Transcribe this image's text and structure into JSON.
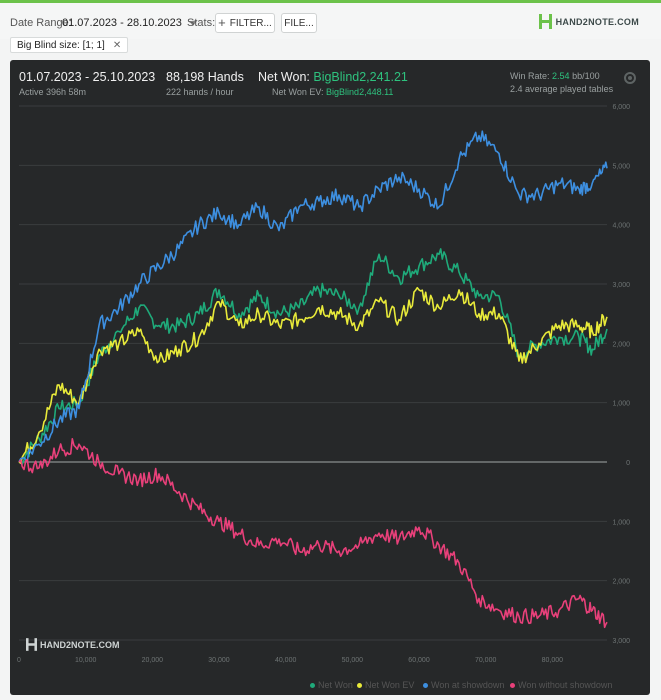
{
  "toolbar": {
    "date_range_label": "Date Range:",
    "date_range_value": "01.07.2023 - 28.10.2023",
    "stats_label": "Stats:",
    "filter_button": "FILTER...",
    "file_button": "FILE...",
    "logo_text": "HAND2NOTE.COM"
  },
  "filter_chip": {
    "label": "Big Blind size: [1; 1]",
    "close": "✕"
  },
  "summary": {
    "period": "01.07.2023 - 25.10.2023",
    "active": "Active 396h 58m",
    "hands": "88,198 Hands",
    "hands_per_hour": "222 hands / hour",
    "net_won_label": "Net Won:",
    "net_won_value": "BigBlind2,241.21",
    "net_won_ev_label": "Net Won  EV:",
    "net_won_ev_value": "BigBlind2,448.11",
    "win_rate_label": "Win Rate:",
    "win_rate_value": "2.54",
    "win_rate_unit": "bb/100",
    "tables": "2.4 average played tables"
  },
  "watermark": "HAND2NOTE.COM",
  "colors": {
    "net_won": "#1faa7a",
    "net_won_ev": "#e8ea3a",
    "won_at_showdown": "#3d8fe0",
    "won_without_showdown": "#e8407a"
  },
  "chart_data": {
    "type": "line",
    "xlim": [
      0,
      88198
    ],
    "ylim": [
      -3000,
      6000
    ],
    "x_ticks": [
      "0",
      "10,000",
      "20,000",
      "30,000",
      "40,000",
      "50,000",
      "60,000",
      "70,000",
      "80,000"
    ],
    "y_ticks": [
      "6,000",
      "5,000",
      "4,000",
      "3,000",
      "2,000",
      "1,000",
      "0",
      "-1,000",
      "-2,000",
      "-3,000"
    ],
    "y_tick_labels": [
      "6,000",
      "5,000",
      "4,000",
      "3,000",
      "2,000",
      "1,000",
      "0",
      "1,000",
      "2,000",
      "3,000"
    ],
    "x_tick_values": [
      0,
      10000,
      20000,
      30000,
      40000,
      50000,
      60000,
      70000,
      80000
    ],
    "y_tick_values": [
      6000,
      5000,
      4000,
      3000,
      2000,
      1000,
      0,
      -1000,
      -2000,
      -3000
    ],
    "series": [
      {
        "name": "Net Won",
        "x": [
          0,
          3000,
          6000,
          9000,
          12000,
          15000,
          18000,
          21000,
          24000,
          27000,
          30000,
          33000,
          36000,
          39000,
          42000,
          45000,
          48000,
          51000,
          54000,
          57000,
          60000,
          63000,
          66000,
          69000,
          72000,
          75000,
          78000,
          81000,
          84000,
          86000,
          88198
        ],
        "y": [
          0,
          400,
          900,
          1000,
          1800,
          2200,
          2600,
          2300,
          2300,
          2500,
          2900,
          2500,
          2800,
          2500,
          2600,
          2900,
          2800,
          2600,
          3500,
          3100,
          3300,
          3500,
          3200,
          2800,
          2800,
          1800,
          2000,
          2100,
          2100,
          1900,
          2241
        ]
      },
      {
        "name": "Net Won  EV",
        "x": [
          0,
          3000,
          6000,
          9000,
          12000,
          15000,
          18000,
          21000,
          24000,
          27000,
          30000,
          33000,
          36000,
          39000,
          42000,
          45000,
          48000,
          51000,
          54000,
          57000,
          60000,
          63000,
          66000,
          69000,
          72000,
          75000,
          78000,
          81000,
          84000,
          86000,
          88198
        ],
        "y": [
          0,
          500,
          1300,
          1000,
          1900,
          2000,
          2200,
          1700,
          1900,
          2100,
          2700,
          2300,
          2500,
          2300,
          2400,
          2600,
          2500,
          2300,
          2700,
          2400,
          2900,
          2600,
          2900,
          2500,
          2500,
          1700,
          2000,
          2300,
          2300,
          2200,
          2448
        ]
      },
      {
        "name": "Won at showdown",
        "x": [
          0,
          3000,
          6000,
          9000,
          12000,
          15000,
          18000,
          21000,
          24000,
          27000,
          30000,
          33000,
          36000,
          39000,
          42000,
          45000,
          48000,
          51000,
          54000,
          57000,
          60000,
          63000,
          66000,
          69000,
          72000,
          75000,
          78000,
          81000,
          84000,
          86000,
          88198
        ],
        "y": [
          0,
          300,
          700,
          900,
          2300,
          2600,
          3000,
          3300,
          3600,
          4000,
          4200,
          4000,
          4300,
          3900,
          4300,
          4400,
          4500,
          4300,
          4600,
          4800,
          4600,
          4300,
          5100,
          5500,
          5200,
          4500,
          4500,
          4700,
          4600,
          4700,
          4950
        ]
      },
      {
        "name": "Won without showdown",
        "x": [
          0,
          3000,
          6000,
          9000,
          12000,
          15000,
          18000,
          21000,
          24000,
          27000,
          30000,
          33000,
          36000,
          39000,
          42000,
          45000,
          48000,
          51000,
          54000,
          57000,
          60000,
          63000,
          66000,
          69000,
          72000,
          75000,
          78000,
          81000,
          84000,
          86000,
          88198
        ],
        "y": [
          0,
          -100,
          200,
          300,
          0,
          -200,
          -300,
          -200,
          -500,
          -800,
          -1000,
          -1200,
          -1400,
          -1300,
          -1500,
          -1400,
          -1500,
          -1400,
          -1200,
          -1300,
          -1100,
          -1400,
          -1700,
          -2300,
          -2500,
          -2600,
          -2600,
          -2500,
          -2300,
          -2500,
          -2700
        ]
      }
    ]
  }
}
